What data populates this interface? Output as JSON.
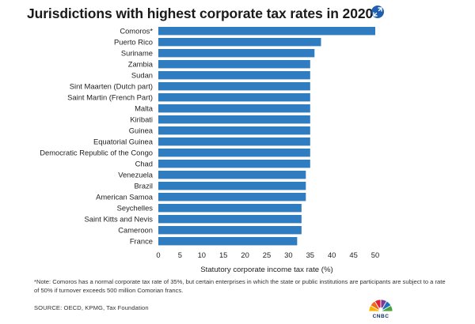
{
  "title": "Jurisdictions with highest corporate tax rates in 2020",
  "expand_icon": "expand-arrows-icon",
  "chart_data": {
    "type": "bar",
    "orientation": "horizontal",
    "title": "Jurisdictions with highest corporate tax rates in 2020",
    "categories": [
      "Comoros*",
      "Puerto Rico",
      "Suriname",
      "Zambia",
      "Sudan",
      "Sint Maarten (Dutch part)",
      "Saint Martin (French Part)",
      "Malta",
      "Kiribati",
      "Guinea",
      "Equatorial Guinea",
      "Democratic Republic of the Congo",
      "Chad",
      "Venezuela",
      "Brazil",
      "American Samoa",
      "Seychelles",
      "Saint Kitts and Nevis",
      "Cameroon",
      "France"
    ],
    "values": [
      50,
      37.5,
      36,
      35,
      35,
      35,
      35,
      35,
      35,
      35,
      35,
      35,
      35,
      34,
      34,
      34,
      33,
      33,
      33,
      32
    ],
    "xlabel": "Statutory corporate income tax rate (%)",
    "ylabel": "",
    "xlim": [
      0,
      50
    ],
    "xticks": [
      0,
      5,
      10,
      15,
      20,
      25,
      30,
      35,
      40,
      45,
      50
    ],
    "bar_color": "#2f7cc1",
    "grid": false
  },
  "note": "*Note: Comoros has a normal corporate tax rate of 35%, but certain enterprises in which the state or public institutions are participants are subject to a rate of 50% if turnover exceeds 500 million Comorian francs.",
  "source": "SOURCE: OECD, KPMG, Tax Foundation",
  "logo": {
    "text": "CNBC",
    "icon": "cnbc-peacock-icon",
    "colors": [
      "#f7b500",
      "#ef6c1a",
      "#e21d38",
      "#7b3c96",
      "#1f6fc0",
      "#4aa33c"
    ]
  }
}
